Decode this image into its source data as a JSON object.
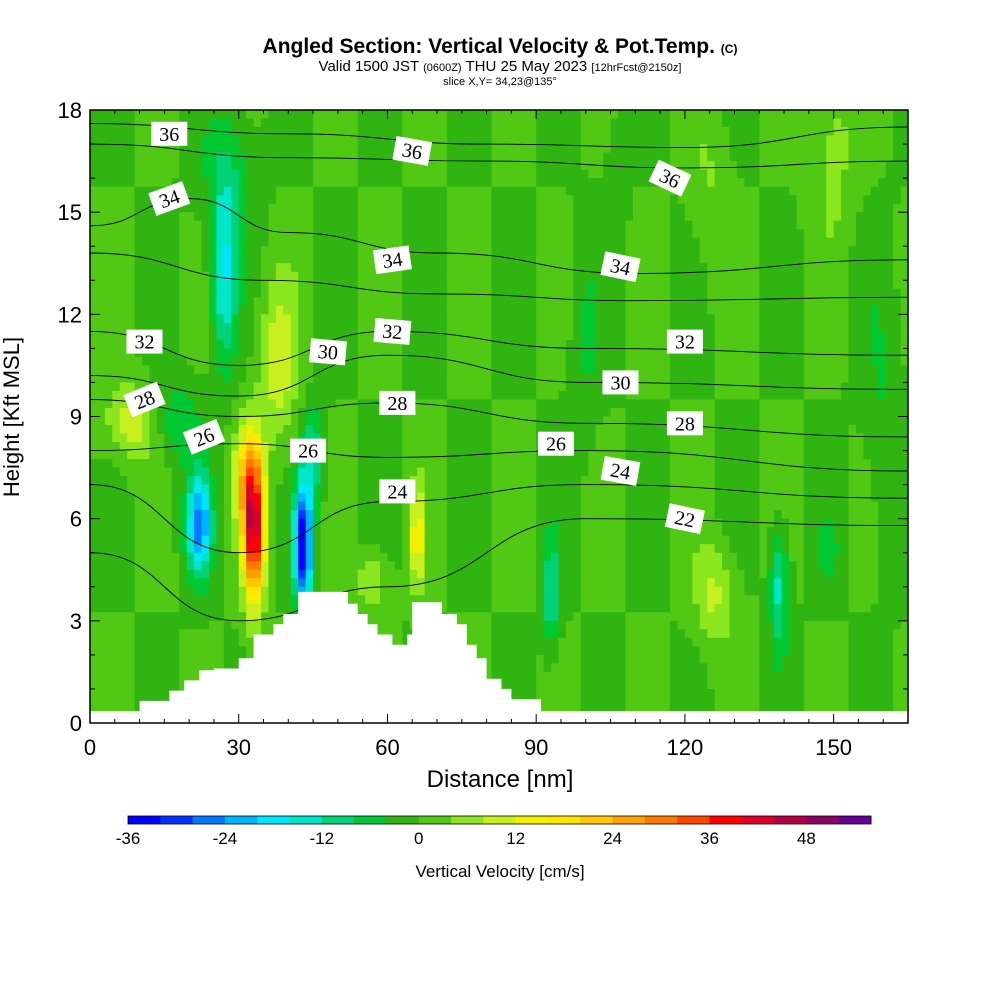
{
  "title": {
    "main": "Angled Section: Vertical Velocity & Pot.Temp.",
    "copyright": "(C)",
    "valid_prefix": "Valid 1500 JST",
    "valid_utc": "(0600Z)",
    "valid_date": "THU 25 May 2023",
    "forecast": "[12hrFcst@2150z]",
    "slice": "slice X,Y= 34,23@135°"
  },
  "chart_data": {
    "type": "heatmap",
    "xlabel": "Distance [nm]",
    "ylabel": "Height [Kft MSL]",
    "xlim": [
      0,
      165
    ],
    "ylim": [
      0,
      18
    ],
    "x_ticks": [
      0,
      30,
      60,
      90,
      120,
      150
    ],
    "y_ticks": [
      0,
      3,
      6,
      9,
      12,
      15,
      18
    ],
    "grid": false,
    "colorbar": {
      "label": "Vertical Velocity [cm/s]",
      "min": -36,
      "max": 54,
      "step": 4,
      "tick_values": [
        -36,
        -24,
        -12,
        0,
        12,
        24,
        36,
        48
      ],
      "tick_labels": [
        "-36",
        "-24",
        "-12",
        "0",
        "12",
        "24",
        "36",
        "48"
      ],
      "colors": [
        "#0000ff",
        "#0032ff",
        "#0078ff",
        "#00b4ff",
        "#00e6ff",
        "#00e6c8",
        "#00d278",
        "#00c832",
        "#30b412",
        "#50c814",
        "#8ce61e",
        "#c8f01e",
        "#f0f000",
        "#ffe600",
        "#ffc800",
        "#ffa000",
        "#ff7800",
        "#ff4600",
        "#ff0000",
        "#dc0028",
        "#b40046",
        "#8c0064",
        "#640096"
      ]
    },
    "terrain_profile": [
      [
        10,
        0.35
      ],
      [
        10,
        0.65
      ],
      [
        16,
        0.65
      ],
      [
        16,
        0.95
      ],
      [
        19,
        0.95
      ],
      [
        19,
        1.25
      ],
      [
        22,
        1.25
      ],
      [
        22,
        1.55
      ],
      [
        25,
        1.55
      ],
      [
        25,
        1.6
      ],
      [
        30,
        1.6
      ],
      [
        30,
        1.9
      ],
      [
        33,
        1.9
      ],
      [
        33,
        2.6
      ],
      [
        37,
        2.6
      ],
      [
        37,
        2.9
      ],
      [
        39,
        2.9
      ],
      [
        39,
        3.2
      ],
      [
        42,
        3.2
      ],
      [
        42,
        3.85
      ],
      [
        52,
        3.85
      ],
      [
        52,
        3.5
      ],
      [
        54,
        3.5
      ],
      [
        54,
        3.2
      ],
      [
        56,
        3.2
      ],
      [
        56,
        2.9
      ],
      [
        58,
        2.9
      ],
      [
        58,
        2.6
      ],
      [
        61,
        2.6
      ],
      [
        61,
        2.3
      ],
      [
        64,
        2.3
      ],
      [
        64,
        2.6
      ],
      [
        65,
        2.6
      ],
      [
        65,
        3.55
      ],
      [
        71,
        3.55
      ],
      [
        71,
        3.2
      ],
      [
        74,
        3.2
      ],
      [
        74,
        2.9
      ],
      [
        76,
        2.9
      ],
      [
        76,
        2.3
      ],
      [
        78,
        2.3
      ],
      [
        78,
        1.9
      ],
      [
        80,
        1.9
      ],
      [
        80,
        1.3
      ],
      [
        83,
        1.3
      ],
      [
        83,
        1.0
      ],
      [
        85,
        1.0
      ],
      [
        85,
        0.7
      ],
      [
        91,
        0.7
      ],
      [
        91,
        0.35
      ]
    ],
    "series": [
      {
        "name": "36",
        "values": [
          [
            0,
            17.6
          ],
          [
            40,
            17.3
          ],
          [
            80,
            17.0
          ],
          [
            120,
            16.9
          ],
          [
            165,
            17.5
          ]
        ]
      },
      {
        "name": "36",
        "values": [
          [
            0,
            17.0
          ],
          [
            40,
            16.6
          ],
          [
            80,
            16.5
          ],
          [
            120,
            16.3
          ],
          [
            165,
            16.5
          ]
        ]
      },
      {
        "name": "34",
        "values": [
          [
            0,
            14.6
          ],
          [
            20,
            15.4
          ],
          [
            40,
            14.4
          ],
          [
            70,
            13.8
          ],
          [
            110,
            13.2
          ],
          [
            165,
            13.6
          ]
        ]
      },
      {
        "name": "34",
        "values": [
          [
            0,
            13.8
          ],
          [
            35,
            13.0
          ],
          [
            70,
            12.6
          ],
          [
            110,
            12.4
          ],
          [
            165,
            12.5
          ]
        ]
      },
      {
        "name": "32",
        "values": [
          [
            0,
            11.5
          ],
          [
            30,
            10.5
          ],
          [
            60,
            11.5
          ],
          [
            100,
            11.0
          ],
          [
            165,
            10.8
          ]
        ]
      },
      {
        "name": "30",
        "values": [
          [
            0,
            10.2
          ],
          [
            30,
            9.6
          ],
          [
            60,
            10.8
          ],
          [
            100,
            10.0
          ],
          [
            165,
            9.8
          ]
        ]
      },
      {
        "name": "28",
        "values": [
          [
            0,
            9.5
          ],
          [
            30,
            9.0
          ],
          [
            60,
            9.4
          ],
          [
            100,
            8.8
          ],
          [
            165,
            8.4
          ]
        ]
      },
      {
        "name": "26",
        "values": [
          [
            0,
            8.0
          ],
          [
            30,
            8.2
          ],
          [
            60,
            7.8
          ],
          [
            100,
            8.0
          ],
          [
            165,
            7.4
          ]
        ]
      },
      {
        "name": "24",
        "values": [
          [
            0,
            7.0
          ],
          [
            30,
            5.0
          ],
          [
            60,
            6.5
          ],
          [
            100,
            7.0
          ],
          [
            165,
            6.6
          ]
        ]
      },
      {
        "name": "22",
        "values": [
          [
            0,
            5.0
          ],
          [
            30,
            3.0
          ],
          [
            60,
            4.0
          ],
          [
            100,
            6.0
          ],
          [
            165,
            5.8
          ]
        ]
      }
    ],
    "contour_labels": [
      {
        "text": "36",
        "x": 16,
        "y": 17.3,
        "angle": 0
      },
      {
        "text": "36",
        "x": 65,
        "y": 16.8,
        "angle": 10
      },
      {
        "text": "36",
        "x": 117,
        "y": 16.0,
        "angle": 25
      },
      {
        "text": "34",
        "x": 16,
        "y": 15.4,
        "angle": -20
      },
      {
        "text": "34",
        "x": 61,
        "y": 13.6,
        "angle": -8
      },
      {
        "text": "34",
        "x": 107,
        "y": 13.4,
        "angle": 12
      },
      {
        "text": "32",
        "x": 11,
        "y": 11.2,
        "angle": 0
      },
      {
        "text": "32",
        "x": 61,
        "y": 11.5,
        "angle": 5
      },
      {
        "text": "32",
        "x": 120,
        "y": 11.2,
        "angle": 0
      },
      {
        "text": "30",
        "x": 48,
        "y": 10.9,
        "angle": 5
      },
      {
        "text": "30",
        "x": 107,
        "y": 10.0,
        "angle": 0
      },
      {
        "text": "28",
        "x": 11,
        "y": 9.5,
        "angle": -22
      },
      {
        "text": "28",
        "x": 62,
        "y": 9.4,
        "angle": 0
      },
      {
        "text": "28",
        "x": 120,
        "y": 8.8,
        "angle": 0
      },
      {
        "text": "26",
        "x": 23,
        "y": 8.4,
        "angle": -22
      },
      {
        "text": "26",
        "x": 44,
        "y": 8.0,
        "angle": 0
      },
      {
        "text": "26",
        "x": 94,
        "y": 8.2,
        "angle": 0
      },
      {
        "text": "24",
        "x": 62,
        "y": 6.8,
        "angle": 0
      },
      {
        "text": "24",
        "x": 107,
        "y": 7.4,
        "angle": 10
      },
      {
        "text": "22",
        "x": 120,
        "y": 6.0,
        "angle": 12
      }
    ]
  }
}
